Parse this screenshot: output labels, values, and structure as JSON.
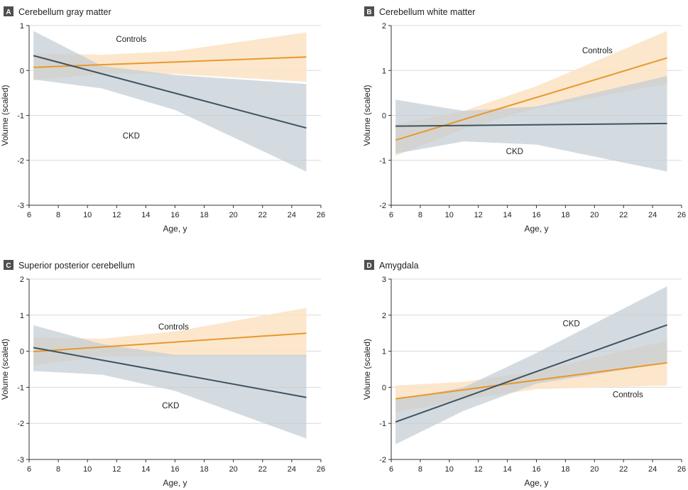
{
  "colors": {
    "controls_line": "#E8982E",
    "controls_band": "#FCE3C4",
    "ckd_line": "#3D5462",
    "ckd_band": "#C3CDD4",
    "grid": "#D9D9D9",
    "letter_box": "#4F4F4F"
  },
  "chart_data": [
    {
      "type": "line",
      "id": "A",
      "letter": "A",
      "title": "Cerebellum gray matter",
      "xlabel": "Age, y",
      "ylabel": "Volume (scaled)",
      "xlim": [
        6,
        26
      ],
      "ylim": [
        -3,
        1
      ],
      "xticks": [
        6,
        8,
        10,
        12,
        14,
        16,
        18,
        20,
        22,
        24,
        26
      ],
      "yticks": [
        -3,
        -2,
        -1,
        0,
        1
      ],
      "series": [
        {
          "name": "Controls",
          "label": "Controls",
          "label_at": [
            13,
            0.7
          ],
          "x": [
            6.3,
            25
          ],
          "y": [
            0.07,
            0.3
          ],
          "band_x": [
            6.3,
            11,
            16,
            25
          ],
          "band_upper": [
            0.38,
            0.35,
            0.43,
            0.85
          ],
          "band_lower": [
            -0.22,
            -0.08,
            -0.08,
            -0.25
          ]
        },
        {
          "name": "CKD",
          "label": "CKD",
          "label_at": [
            13,
            -1.45
          ],
          "x": [
            6.3,
            25
          ],
          "y": [
            0.33,
            -1.28
          ],
          "band_x": [
            6.3,
            11,
            16,
            25
          ],
          "band_upper": [
            0.88,
            0.1,
            -0.1,
            -0.3
          ],
          "band_lower": [
            -0.2,
            -0.4,
            -0.88,
            -2.25
          ]
        }
      ]
    },
    {
      "type": "line",
      "id": "B",
      "letter": "B",
      "title": "Cerebellum white matter",
      "xlabel": "Age, y",
      "ylabel": "Volume (scaled)",
      "xlim": [
        6,
        26
      ],
      "ylim": [
        -2,
        2
      ],
      "xticks": [
        6,
        8,
        10,
        12,
        14,
        16,
        18,
        20,
        22,
        24,
        26
      ],
      "yticks": [
        -2,
        -1,
        0,
        1,
        2
      ],
      "series": [
        {
          "name": "Controls",
          "label": "Controls",
          "label_at": [
            20.2,
            1.45
          ],
          "x": [
            6.3,
            25
          ],
          "y": [
            -0.55,
            1.28
          ],
          "band_x": [
            6.3,
            11,
            16,
            25
          ],
          "band_upper": [
            -0.2,
            0.1,
            0.65,
            1.88
          ],
          "band_lower": [
            -0.9,
            -0.3,
            0.15,
            0.7
          ]
        },
        {
          "name": "CKD",
          "label": "CKD",
          "label_at": [
            14.5,
            -0.8
          ],
          "x": [
            6.3,
            25
          ],
          "y": [
            -0.24,
            -0.18
          ],
          "band_x": [
            6.3,
            11,
            16,
            25
          ],
          "band_upper": [
            0.35,
            0.1,
            0.2,
            0.88
          ],
          "band_lower": [
            -0.85,
            -0.58,
            -0.65,
            -1.25
          ]
        }
      ]
    },
    {
      "type": "line",
      "id": "C",
      "letter": "C",
      "title": "Superior posterior cerebellum",
      "xlabel": "Age, y",
      "ylabel": "Volume (scaled)",
      "xlim": [
        6,
        26
      ],
      "ylim": [
        -3,
        2
      ],
      "xticks": [
        6,
        8,
        10,
        12,
        14,
        16,
        18,
        20,
        22,
        24,
        26
      ],
      "yticks": [
        -3,
        -2,
        -1,
        0,
        1,
        2
      ],
      "series": [
        {
          "name": "Controls",
          "label": "Controls",
          "label_at": [
            15.9,
            0.68
          ],
          "x": [
            6.3,
            25
          ],
          "y": [
            -0.01,
            0.5
          ],
          "band_x": [
            6.3,
            11,
            16,
            25
          ],
          "band_upper": [
            0.38,
            0.35,
            0.55,
            1.2
          ],
          "band_lower": [
            -0.4,
            -0.15,
            -0.15,
            -0.15
          ]
        },
        {
          "name": "CKD",
          "label": "CKD",
          "label_at": [
            15.7,
            -1.5
          ],
          "x": [
            6.3,
            25
          ],
          "y": [
            0.1,
            -1.28
          ],
          "band_x": [
            6.3,
            11,
            16,
            25
          ],
          "band_upper": [
            0.72,
            0.2,
            -0.1,
            -0.1
          ],
          "band_lower": [
            -0.55,
            -0.65,
            -1.1,
            -2.42
          ]
        }
      ]
    },
    {
      "type": "line",
      "id": "D",
      "letter": "D",
      "title": "Amygdala",
      "xlabel": "Age, y",
      "ylabel": "Volume (scaled)",
      "xlim": [
        6,
        26
      ],
      "ylim": [
        -2,
        3
      ],
      "xticks": [
        6,
        8,
        10,
        12,
        14,
        16,
        18,
        20,
        22,
        24,
        26
      ],
      "yticks": [
        -2,
        -1,
        0,
        1,
        2,
        3
      ],
      "series": [
        {
          "name": "Controls",
          "label": "Controls",
          "label_at": [
            22.3,
            -0.2
          ],
          "x": [
            6.3,
            25
          ],
          "y": [
            -0.32,
            0.68
          ],
          "band_x": [
            6.3,
            11,
            16,
            25
          ],
          "band_upper": [
            0.05,
            0.15,
            0.45,
            1.3
          ],
          "band_lower": [
            -0.7,
            -0.35,
            -0.05,
            0.05
          ]
        },
        {
          "name": "CKD",
          "label": "CKD",
          "label_at": [
            18.4,
            1.77
          ],
          "x": [
            6.3,
            25
          ],
          "y": [
            -0.96,
            1.73
          ],
          "band_x": [
            6.3,
            11,
            16,
            25
          ],
          "band_upper": [
            -0.35,
            0.0,
            0.95,
            2.8
          ],
          "band_lower": [
            -1.58,
            -0.65,
            0.1,
            0.68
          ]
        }
      ]
    }
  ]
}
